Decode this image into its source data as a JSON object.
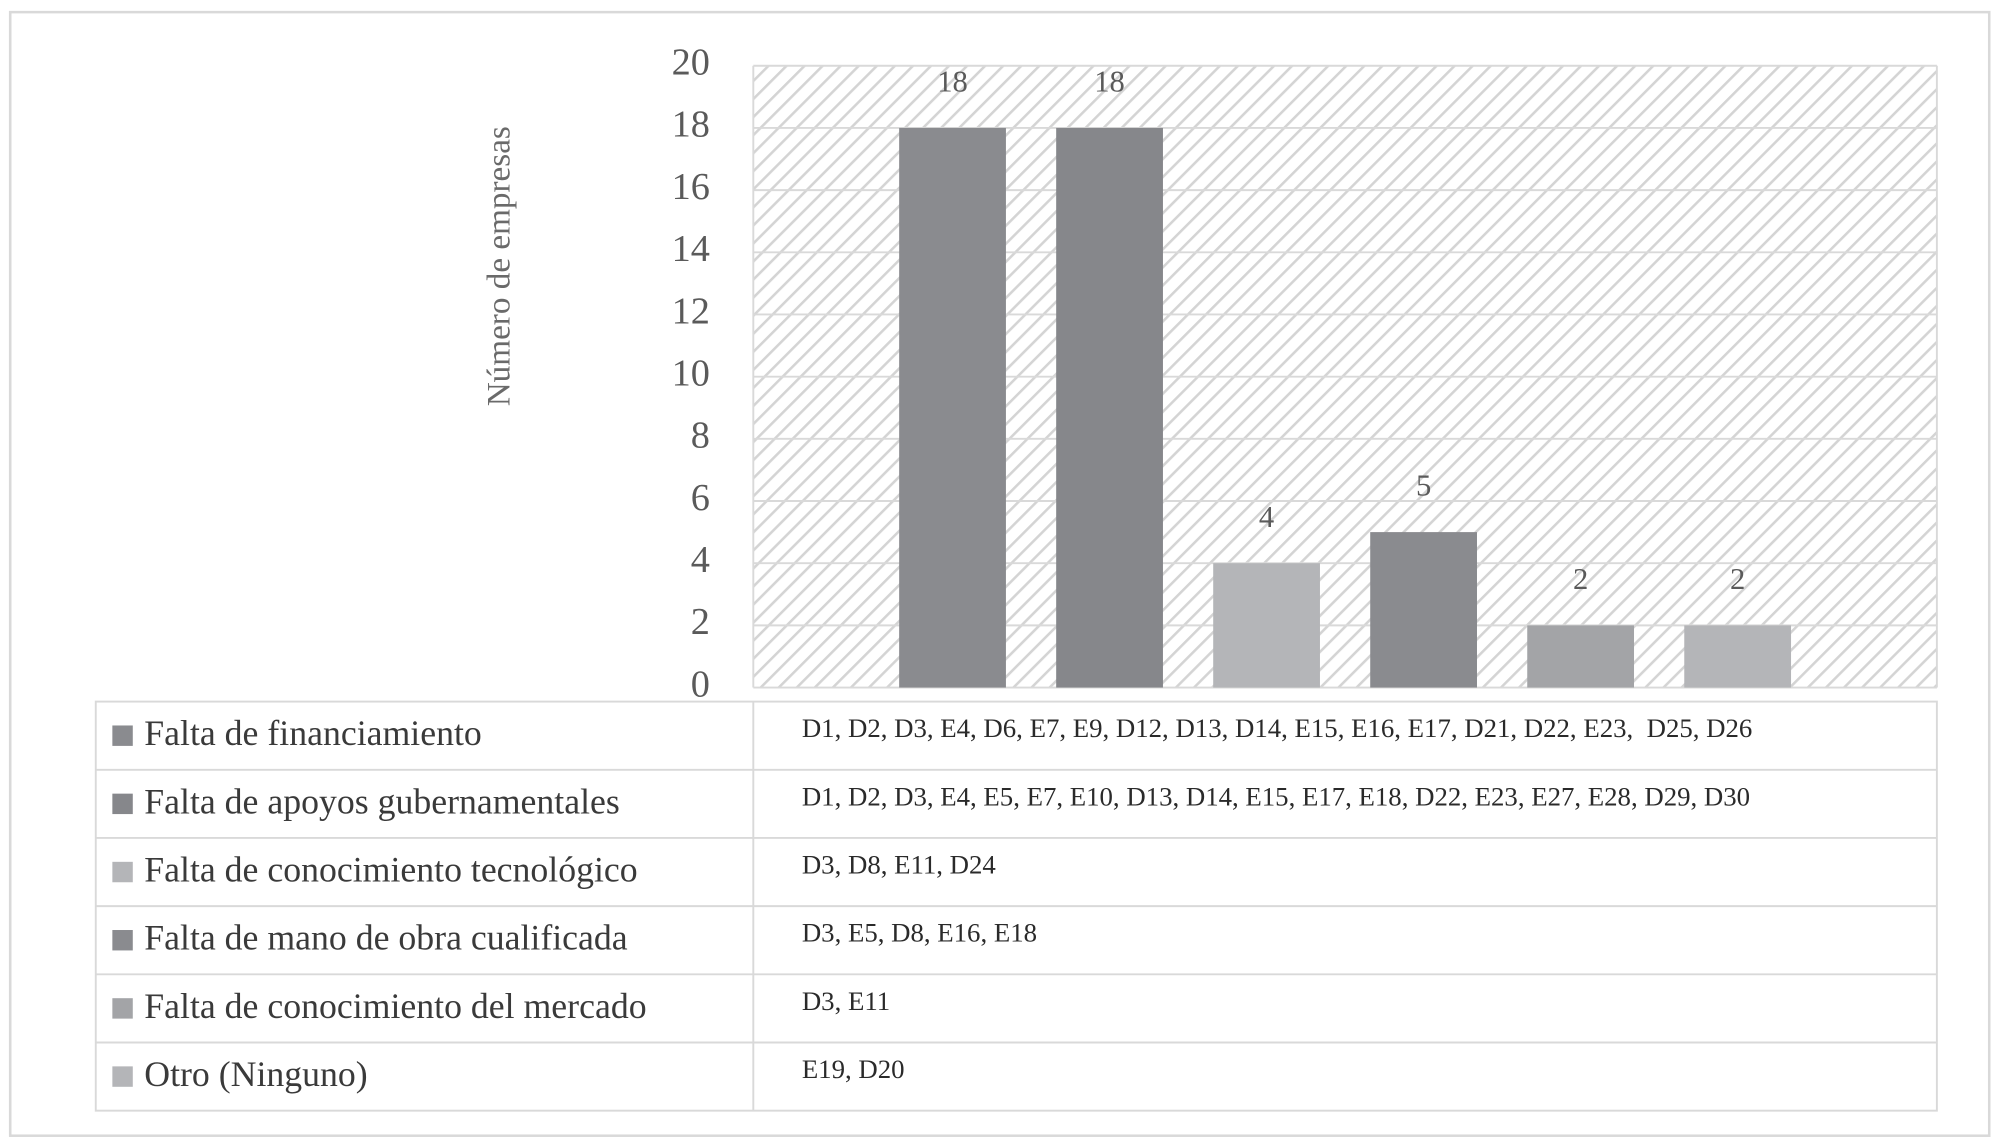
{
  "chart_data": {
    "type": "bar",
    "y_axis_title": "Número de empresas",
    "ylim": [
      0,
      20
    ],
    "yticks": [
      0,
      2,
      4,
      6,
      8,
      10,
      12,
      14,
      16,
      18,
      20
    ],
    "grid": true,
    "series": [
      {
        "name": "Falta de financiamiento",
        "color": "#8a8b8f",
        "values": [
          18
        ],
        "companies": "D1, D2, D3, E4, D6, E7, E9, D12, D13, D14, E15, E16, E17, D21, D22, E23,  D25, D26"
      },
      {
        "name": "Falta de apoyos gubernamentales",
        "color": "#86878b",
        "values": [
          18
        ],
        "companies": "D1, D2, D3, E4, E5, E7, E10, D13, D14, E15, E17, E18, D22, E23, E27, E28, D29, D30"
      },
      {
        "name": "Falta de conocimiento tecnológico",
        "color": "#b4b5b8",
        "values": [
          4
        ],
        "companies": "D3, D8, E11, D24"
      },
      {
        "name": "Falta de mano de obra cualificada",
        "color": "#8a8b8f",
        "values": [
          5
        ],
        "companies": "D3, E5, D8, E16, E18"
      },
      {
        "name": "Falta de conocimiento del mercado",
        "color": "#a3a4a7",
        "values": [
          2
        ],
        "companies": "D3, E11"
      },
      {
        "name": "Otro (Ninguno)",
        "color": "#b4b5b8",
        "values": [
          2
        ],
        "companies": "E19, D20"
      }
    ]
  }
}
